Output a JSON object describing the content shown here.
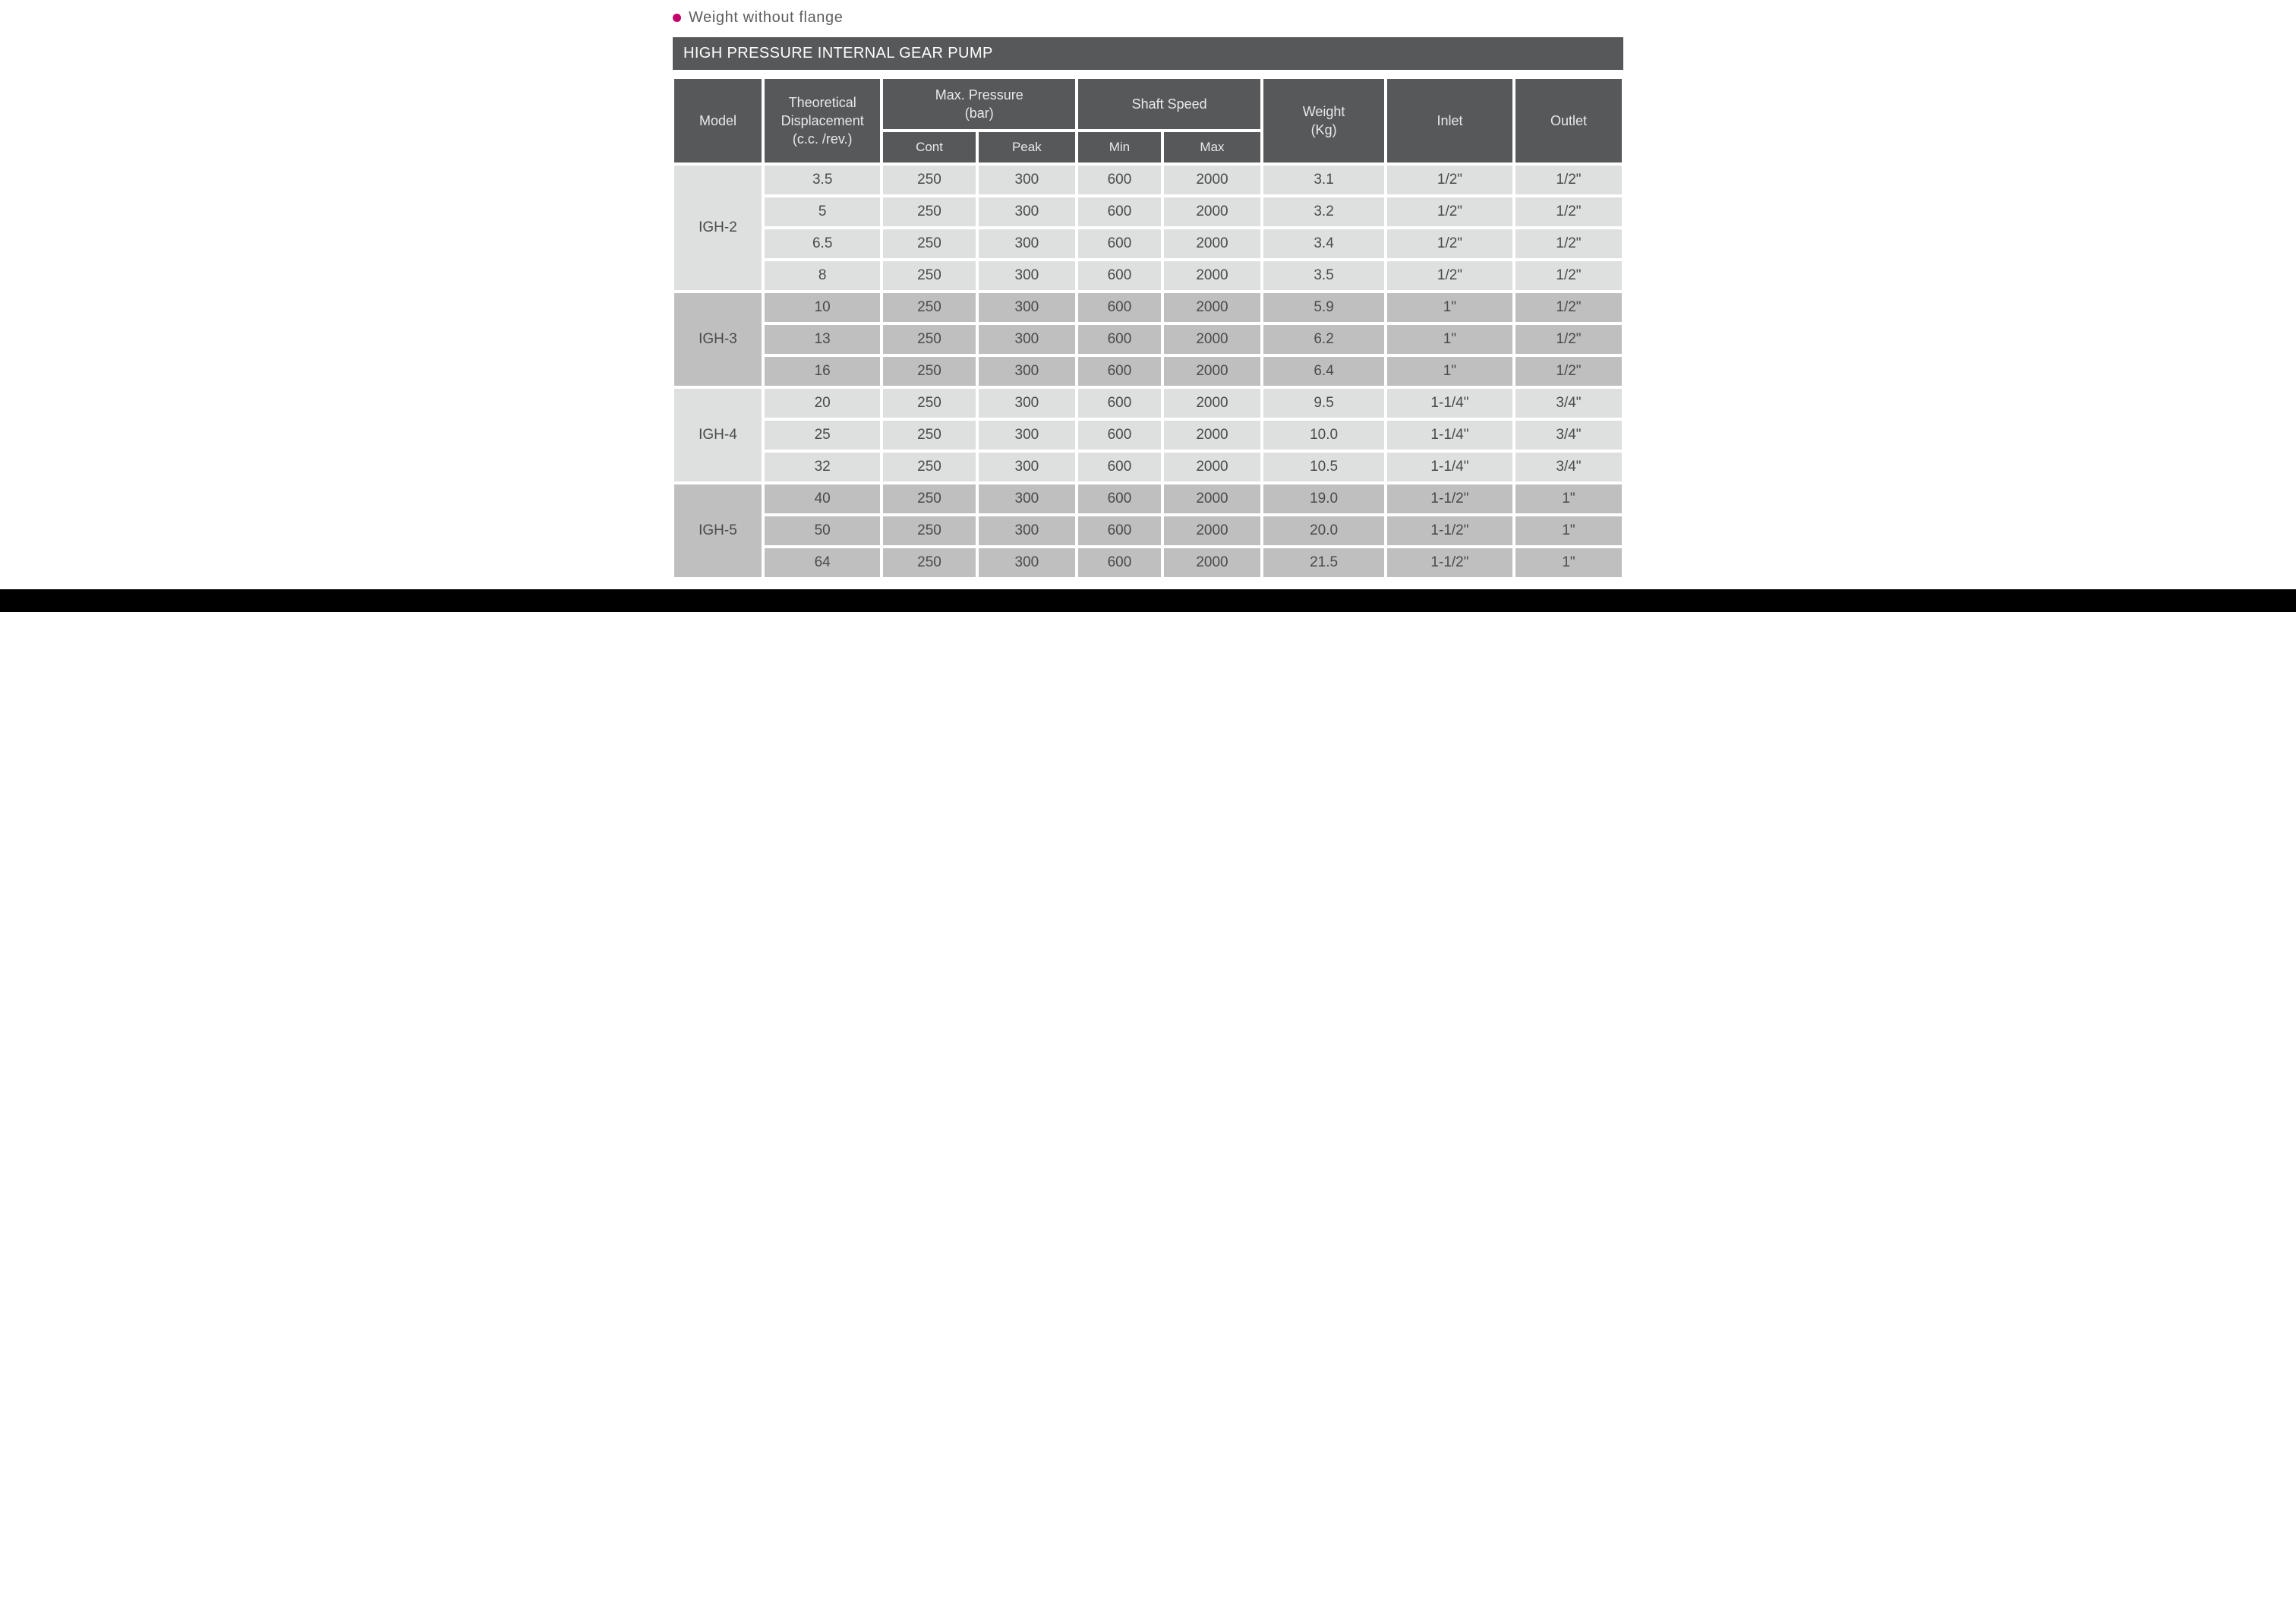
{
  "caption": "Weight without flange",
  "banner": "HIGH PRESSURE INTERNAL GEAR PUMP",
  "bullet_color": "#c4006a",
  "headers": {
    "model": "Model",
    "displacement": "Theoretical\nDisplacement\n(c.c. /rev.)",
    "pressure_group": "Max. Pressure\n(bar)",
    "pressure_cont": "Cont",
    "pressure_peak": "Peak",
    "shaft_group": "Shaft Speed",
    "shaft_min": "Min",
    "shaft_max": "Max",
    "weight": "Weight\n(Kg)",
    "inlet": "Inlet",
    "outlet": "Outlet"
  },
  "groups": [
    {
      "model": "IGH-2",
      "shade": "light",
      "rows": [
        {
          "disp": "3.5",
          "cont": "250",
          "peak": "300",
          "min": "600",
          "max": "2000",
          "weight": "3.1",
          "inlet": "1/2\"",
          "outlet": "1/2\""
        },
        {
          "disp": "5",
          "cont": "250",
          "peak": "300",
          "min": "600",
          "max": "2000",
          "weight": "3.2",
          "inlet": "1/2\"",
          "outlet": "1/2\""
        },
        {
          "disp": "6.5",
          "cont": "250",
          "peak": "300",
          "min": "600",
          "max": "2000",
          "weight": "3.4",
          "inlet": "1/2\"",
          "outlet": "1/2\""
        },
        {
          "disp": "8",
          "cont": "250",
          "peak": "300",
          "min": "600",
          "max": "2000",
          "weight": "3.5",
          "inlet": "1/2\"",
          "outlet": "1/2\""
        }
      ]
    },
    {
      "model": "IGH-3",
      "shade": "dark",
      "rows": [
        {
          "disp": "10",
          "cont": "250",
          "peak": "300",
          "min": "600",
          "max": "2000",
          "weight": "5.9",
          "inlet": "1\"",
          "outlet": "1/2\""
        },
        {
          "disp": "13",
          "cont": "250",
          "peak": "300",
          "min": "600",
          "max": "2000",
          "weight": "6.2",
          "inlet": "1\"",
          "outlet": "1/2\""
        },
        {
          "disp": "16",
          "cont": "250",
          "peak": "300",
          "min": "600",
          "max": "2000",
          "weight": "6.4",
          "inlet": "1\"",
          "outlet": "1/2\""
        }
      ]
    },
    {
      "model": "IGH-4",
      "shade": "light",
      "rows": [
        {
          "disp": "20",
          "cont": "250",
          "peak": "300",
          "min": "600",
          "max": "2000",
          "weight": "9.5",
          "inlet": "1-1/4\"",
          "outlet": "3/4\""
        },
        {
          "disp": "25",
          "cont": "250",
          "peak": "300",
          "min": "600",
          "max": "2000",
          "weight": "10.0",
          "inlet": "1-1/4\"",
          "outlet": "3/4\""
        },
        {
          "disp": "32",
          "cont": "250",
          "peak": "300",
          "min": "600",
          "max": "2000",
          "weight": "10.5",
          "inlet": "1-1/4\"",
          "outlet": "3/4\""
        }
      ]
    },
    {
      "model": "IGH-5",
      "shade": "dark",
      "rows": [
        {
          "disp": "40",
          "cont": "250",
          "peak": "300",
          "min": "600",
          "max": "2000",
          "weight": "19.0",
          "inlet": "1-1/2\"",
          "outlet": "1\""
        },
        {
          "disp": "50",
          "cont": "250",
          "peak": "300",
          "min": "600",
          "max": "2000",
          "weight": "20.0",
          "inlet": "1-1/2\"",
          "outlet": "1\""
        },
        {
          "disp": "64",
          "cont": "250",
          "peak": "300",
          "min": "600",
          "max": "2000",
          "weight": "21.5",
          "inlet": "1-1/2\"",
          "outlet": "1\""
        }
      ]
    }
  ]
}
